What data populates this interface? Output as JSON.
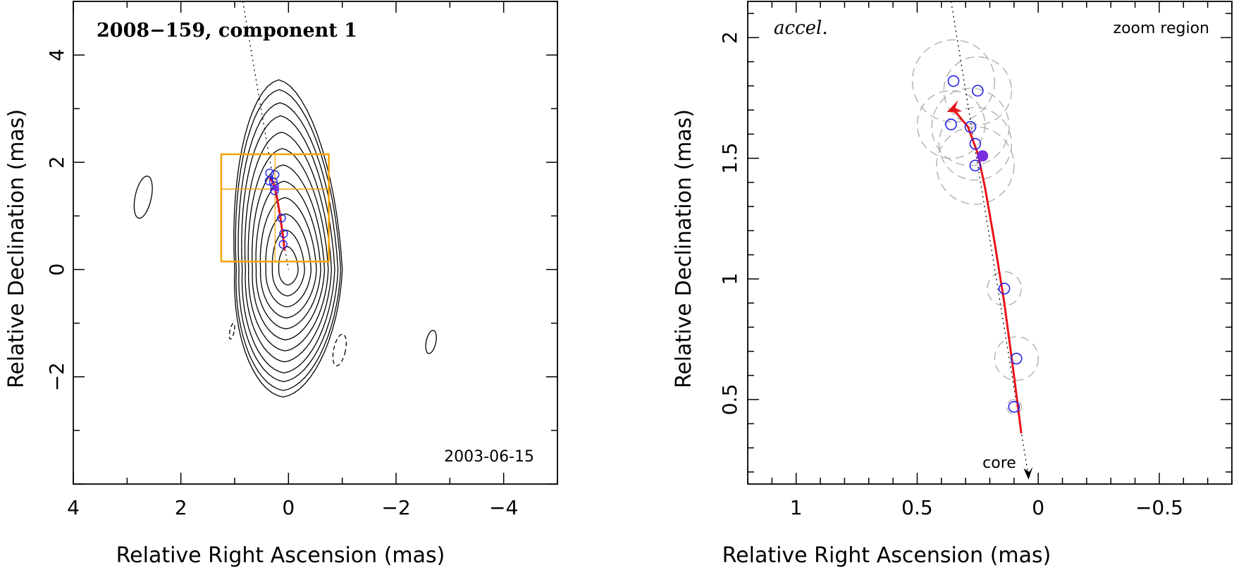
{
  "chart_data": [
    {
      "type": "scatter",
      "title": "2008−159, component 1",
      "date_annotation": "2003-06-15",
      "xlabel": "Relative Right Ascension (mas)",
      "ylabel": "Relative Declination (mas)",
      "xlim": [
        4,
        -5
      ],
      "ylim": [
        -4,
        5
      ],
      "xticks": [
        4,
        2,
        0,
        -2,
        -4
      ],
      "xtick_labels": [
        "4",
        "2",
        "0",
        "−2",
        "−4"
      ],
      "yticks": [
        -2,
        0,
        2,
        4
      ],
      "ytick_labels": [
        "−2",
        "0",
        "2",
        "4"
      ],
      "contour_levels": [
        {
          "w": 0.18,
          "h": 0.35
        },
        {
          "w": 0.3,
          "h": 0.6
        },
        {
          "w": 0.42,
          "h": 0.85
        },
        {
          "w": 0.52,
          "h": 1.1
        },
        {
          "w": 0.6,
          "h": 1.35
        },
        {
          "w": 0.67,
          "h": 1.6
        },
        {
          "w": 0.74,
          "h": 1.85
        },
        {
          "w": 0.8,
          "h": 2.1
        },
        {
          "w": 0.86,
          "h": 2.35
        },
        {
          "w": 0.92,
          "h": 2.55
        },
        {
          "w": 0.97,
          "h": 2.75
        },
        {
          "w": 1.0,
          "h": 2.9
        }
      ],
      "contour_center": [
        0.0,
        0.0
      ],
      "small_contours": [
        {
          "x": 2.7,
          "y": 1.35,
          "w": 0.15,
          "h": 0.4,
          "dashed": false
        },
        {
          "x": -2.65,
          "y": -1.35,
          "w": 0.09,
          "h": 0.22,
          "dashed": false
        },
        {
          "x": -0.95,
          "y": -1.5,
          "w": 0.11,
          "h": 0.3,
          "dashed": true
        },
        {
          "x": 1.05,
          "y": -1.15,
          "w": 0.04,
          "h": 0.15,
          "dashed": true
        }
      ],
      "zoom_box": {
        "x_range": [
          1.25,
          -0.75
        ],
        "y_range": [
          0.15,
          2.15
        ],
        "hline_y": 1.5
      },
      "positions": [
        {
          "x": 0.35,
          "y": 1.8
        },
        {
          "x": 0.25,
          "y": 1.77
        },
        {
          "x": 0.36,
          "y": 1.65
        },
        {
          "x": 0.28,
          "y": 1.63
        },
        {
          "x": 0.26,
          "y": 1.56
        },
        {
          "x": 0.26,
          "y": 1.47
        },
        {
          "x": 0.13,
          "y": 0.96
        },
        {
          "x": 0.09,
          "y": 0.67
        },
        {
          "x": 0.1,
          "y": 0.47
        }
      ],
      "reference_position": {
        "x": 0.23,
        "y": 1.51
      }
    },
    {
      "type": "scatter",
      "title": "accel.",
      "region_label": "zoom region",
      "core_label": "core",
      "xlabel": "Relative Right Ascension (mas)",
      "ylabel": "Relative Declination (mas)",
      "xlim": [
        1.2,
        -0.8
      ],
      "ylim": [
        0.15,
        2.15
      ],
      "xticks": [
        1,
        0.5,
        0,
        -0.5
      ],
      "xtick_labels": [
        "1",
        "0.5",
        "0",
        "−0.5"
      ],
      "yticks": [
        0.5,
        1,
        1.5,
        2
      ],
      "ytick_labels": [
        "0.5",
        "1",
        "1.5",
        "2"
      ],
      "positions": [
        {
          "x": 0.35,
          "y": 1.82,
          "err": 0.17
        },
        {
          "x": 0.25,
          "y": 1.78,
          "err": 0.14
        },
        {
          "x": 0.36,
          "y": 1.64,
          "err": 0.14
        },
        {
          "x": 0.28,
          "y": 1.63,
          "err": 0.16
        },
        {
          "x": 0.26,
          "y": 1.56,
          "err": 0.15
        },
        {
          "x": 0.26,
          "y": 1.47,
          "err": 0.16
        },
        {
          "x": 0.14,
          "y": 0.96,
          "err": 0.07
        },
        {
          "x": 0.09,
          "y": 0.67,
          "err": 0.09
        },
        {
          "x": 0.1,
          "y": 0.47,
          "err": 0.03
        }
      ],
      "reference_position": {
        "x": 0.23,
        "y": 1.51
      },
      "trajectory": [
        {
          "x": 0.07,
          "y": 0.36
        },
        {
          "x": 0.1,
          "y": 0.6
        },
        {
          "x": 0.14,
          "y": 0.9
        },
        {
          "x": 0.18,
          "y": 1.15
        },
        {
          "x": 0.22,
          "y": 1.38
        },
        {
          "x": 0.25,
          "y": 1.52
        },
        {
          "x": 0.29,
          "y": 1.63
        },
        {
          "x": 0.34,
          "y": 1.69
        },
        {
          "x": 0.36,
          "y": 1.7
        }
      ],
      "dotted_line": [
        {
          "x": 0.36,
          "y": 2.15
        },
        {
          "x": 0.04,
          "y": 0.18
        }
      ],
      "colors": {
        "trajectory": "#e8141b",
        "position": "#2323e6",
        "reference": "#7b2de0",
        "error": "#aaaaaa",
        "zoom_box": "#f4a400"
      }
    }
  ]
}
